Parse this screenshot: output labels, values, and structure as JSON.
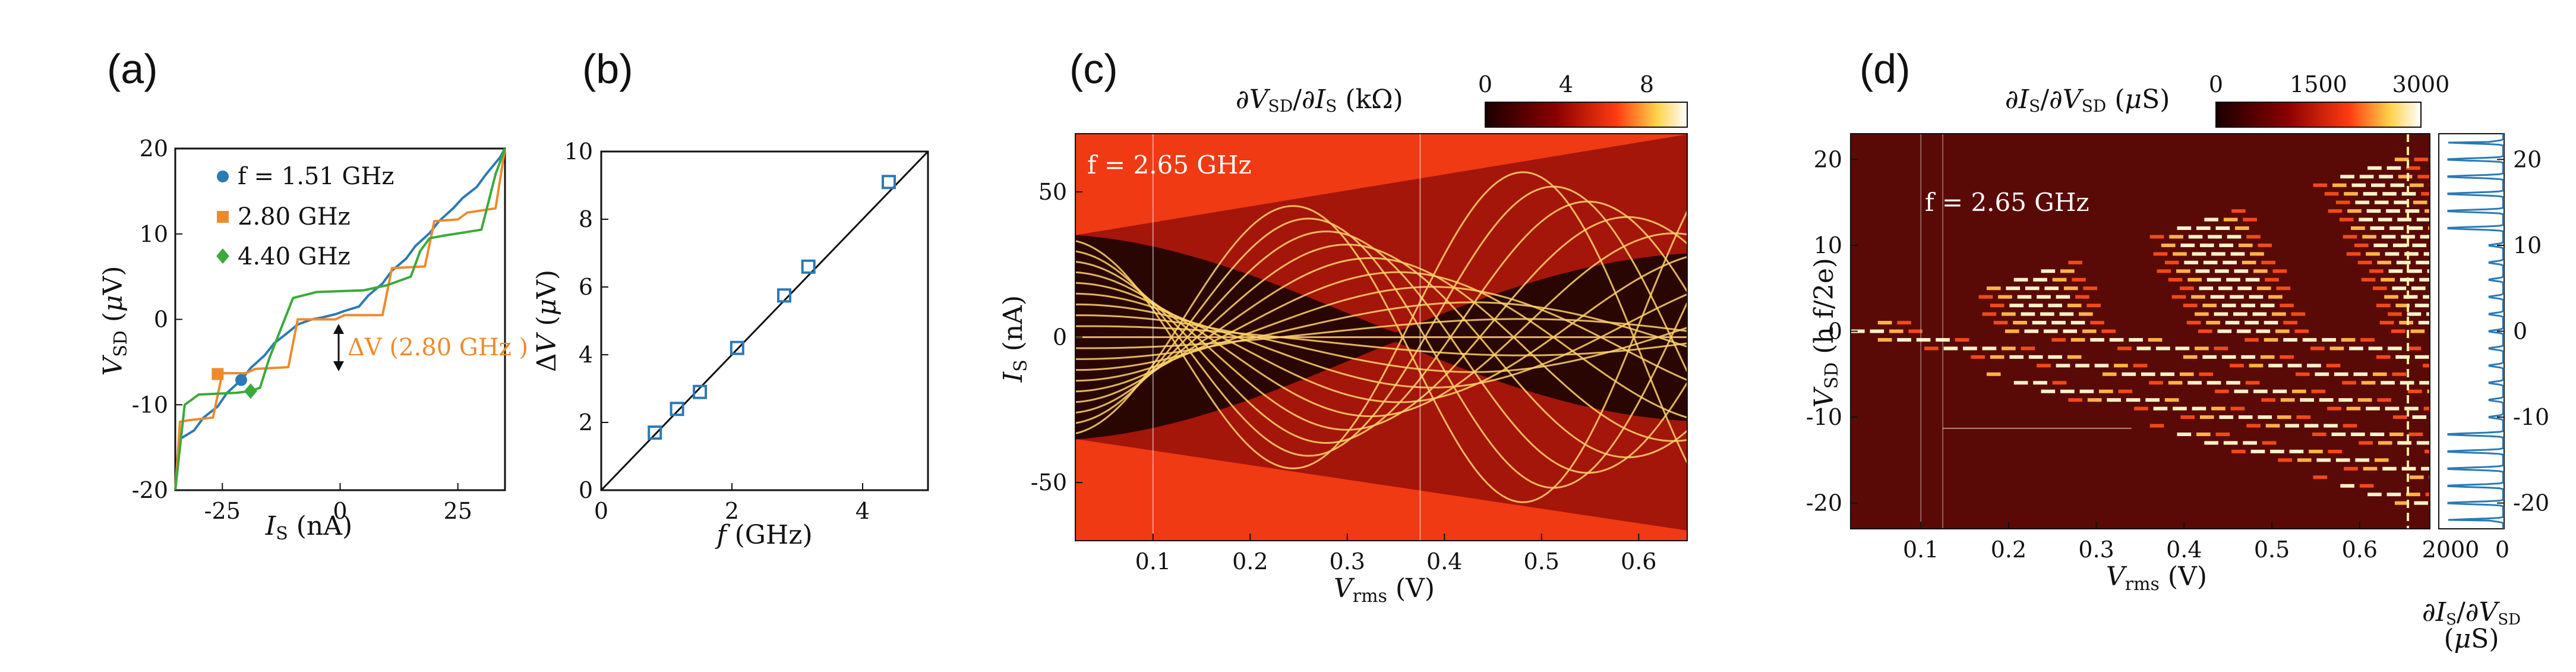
{
  "colors": {
    "blue": "#2a7ab5",
    "orange": "#ef8a2c",
    "green": "#3aaa3a",
    "heat_bg": "#f03a14",
    "heat_dark": "#2a0603",
    "heat_line": "#ffd36a"
  },
  "panels": {
    "a": {
      "label": "(a)"
    },
    "b": {
      "label": "(b)"
    },
    "c": {
      "label": "(c)"
    },
    "d": {
      "label": "(d)"
    }
  },
  "chart_data": [
    {
      "id": "a",
      "type": "line",
      "title": "",
      "xlabel": "I_S (nA)",
      "ylabel": "V_SD (μV)",
      "xlim": [
        -35,
        35
      ],
      "ylim": [
        -20,
        20
      ],
      "xticks": [
        "-25",
        "0",
        "25"
      ],
      "xtick_values": [
        -25,
        0,
        25
      ],
      "yticks": [
        "-20",
        "-10",
        "0",
        "10",
        "20"
      ],
      "ytick_values": [
        -20,
        -10,
        0,
        10,
        20
      ],
      "legend": [
        {
          "label": "f = 1.51 GHz",
          "marker": "circle",
          "color": "#2a7ab5"
        },
        {
          "label": "2.80 GHz",
          "marker": "square",
          "color": "#ef8a2c"
        },
        {
          "label": "4.40 GHz",
          "marker": "diamond",
          "color": "#3aaa3a"
        }
      ],
      "annotation": "ΔV (2.80 GHz )",
      "series": [
        {
          "name": "1.51 GHz",
          "color": "#2a7ab5",
          "x": [
            -35,
            -34,
            -31,
            -29,
            -26,
            -24,
            -21,
            -19,
            -16,
            -14,
            -11,
            -9,
            -6,
            -4,
            -1,
            1,
            4,
            6,
            9,
            11,
            14,
            16,
            19,
            21,
            24,
            26,
            29,
            31,
            34,
            35
          ],
          "y": [
            -20,
            -14,
            -13,
            -11.5,
            -10.2,
            -8.6,
            -7.1,
            -5.7,
            -4.2,
            -2.8,
            -1.5,
            -0.6,
            0,
            0.2,
            0.6,
            1.0,
            1.5,
            2.8,
            4.2,
            5.7,
            7.1,
            8.6,
            10.1,
            11.5,
            13.0,
            14.2,
            15.5,
            17,
            19,
            20
          ]
        },
        {
          "name": "2.80 GHz",
          "color": "#ef8a2c",
          "x": [
            -35,
            -34,
            -32,
            -27,
            -25,
            -20,
            -18,
            -11,
            -9,
            -1,
            1,
            9,
            11,
            18,
            20,
            25,
            27,
            33,
            35
          ],
          "y": [
            -20,
            -12,
            -11.8,
            -11.5,
            -6.3,
            -6.3,
            -5.8,
            -5.6,
            0,
            0,
            0.5,
            0.5,
            6.0,
            6.2,
            11.5,
            11.7,
            12.5,
            13,
            20
          ]
        },
        {
          "name": "4.40 GHz",
          "color": "#3aaa3a",
          "x": [
            -35,
            -33,
            -30,
            -22,
            -19,
            -17,
            -15,
            -10,
            -5,
            5,
            10,
            15,
            17,
            19,
            22,
            30,
            33,
            35
          ],
          "y": [
            -20,
            -10,
            -8.8,
            -8.6,
            -8.4,
            -8,
            -4.5,
            2.5,
            3.2,
            3.4,
            4.0,
            5.0,
            8,
            9.5,
            9.8,
            10.5,
            17,
            20
          ]
        }
      ],
      "markers": [
        {
          "series": "1.51 GHz",
          "x": -21,
          "y": -7.1
        },
        {
          "series": "2.80 GHz",
          "x": -26,
          "y": -6.4
        },
        {
          "series": "4.40 GHz",
          "x": -19,
          "y": -8.4
        }
      ]
    },
    {
      "id": "b",
      "type": "scatter",
      "title": "",
      "xlabel": "f (GHz)",
      "ylabel": "ΔV (μV)",
      "xlim": [
        0,
        5
      ],
      "ylim": [
        0,
        10
      ],
      "xticks": [
        "0",
        "2",
        "4"
      ],
      "xtick_values": [
        0,
        2,
        4
      ],
      "yticks": [
        "0",
        "2",
        "4",
        "6",
        "8",
        "10"
      ],
      "ytick_values": [
        0,
        2,
        4,
        6,
        8,
        10
      ],
      "x": [
        0.82,
        1.16,
        1.51,
        2.08,
        2.8,
        3.17,
        4.4
      ],
      "y": [
        1.7,
        2.4,
        2.9,
        4.2,
        5.75,
        6.6,
        9.1
      ],
      "fit_line": {
        "x": [
          0,
          5
        ],
        "y": [
          0,
          10.3
        ]
      }
    },
    {
      "id": "c",
      "type": "heatmap",
      "title": "",
      "xlabel": "V_rms (V)",
      "ylabel": "I_S (nA)",
      "xlim": [
        0.02,
        0.65
      ],
      "ylim": [
        -70,
        70
      ],
      "xticks": [
        "0.1",
        "0.2",
        "0.3",
        "0.4",
        "0.5",
        "0.6"
      ],
      "xtick_values": [
        0.1,
        0.2,
        0.3,
        0.4,
        0.5,
        0.6
      ],
      "yticks": [
        "50",
        "0",
        "-50"
      ],
      "ytick_values": [
        50,
        0,
        -50
      ],
      "colorbar_label": "∂V_SD/∂I_S (kΩ)",
      "colorbar_ticks": [
        "0",
        "4",
        "8"
      ],
      "colorbar_range": [
        0,
        10
      ],
      "inset_text": "f = 2.65 GHz"
    },
    {
      "id": "d",
      "type": "heatmap",
      "title": "",
      "xlabel": "V_rms (V)",
      "ylabel": "V_SD (h f/2e)",
      "xlim": [
        0.02,
        0.68
      ],
      "ylim": [
        -23,
        23
      ],
      "xticks": [
        "0.1",
        "0.2",
        "0.3",
        "0.4",
        "0.5",
        "0.6"
      ],
      "xtick_values": [
        0.1,
        0.2,
        0.3,
        0.4,
        0.5,
        0.6
      ],
      "yticks": [
        "20",
        "10",
        "0",
        "-10",
        "-20"
      ],
      "ytick_values": [
        20,
        10,
        0,
        -10,
        -20
      ],
      "colorbar_label": "∂I_S/∂V_SD (μS)",
      "colorbar_ticks": [
        "0",
        "1500",
        "3000"
      ],
      "colorbar_range": [
        0,
        3000
      ],
      "inset_text": "f = 2.65 GHz",
      "side_panel": {
        "xlabel_line1": "∂I_S/∂V_SD",
        "xlabel_line2": "(μS)",
        "xticks": [
          "2000",
          "0"
        ],
        "yticks": [
          "20",
          "10",
          "0",
          "-10",
          "-20"
        ]
      }
    }
  ]
}
